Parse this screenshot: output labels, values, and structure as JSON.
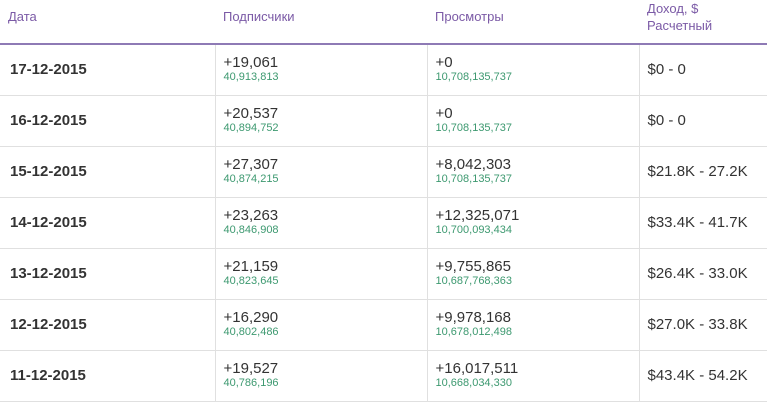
{
  "headers": {
    "date": "Дата",
    "subscribers": "Подписчики",
    "views": "Просмотры",
    "income_line1": "Доход, $",
    "income_line2": "Расчетный"
  },
  "rows": [
    {
      "date": "17-12-2015",
      "subs_delta": "+19,061",
      "subs_total": "40,913,813",
      "views_delta": "+0",
      "views_total": "10,708,135,737",
      "income": "$0 - 0"
    },
    {
      "date": "16-12-2015",
      "subs_delta": "+20,537",
      "subs_total": "40,894,752",
      "views_delta": "+0",
      "views_total": "10,708,135,737",
      "income": "$0 - 0"
    },
    {
      "date": "15-12-2015",
      "subs_delta": "+27,307",
      "subs_total": "40,874,215",
      "views_delta": "+8,042,303",
      "views_total": "10,708,135,737",
      "income": "$21.8K - 27.2K"
    },
    {
      "date": "14-12-2015",
      "subs_delta": "+23,263",
      "subs_total": "40,846,908",
      "views_delta": "+12,325,071",
      "views_total": "10,700,093,434",
      "income": "$33.4K - 41.7K"
    },
    {
      "date": "13-12-2015",
      "subs_delta": "+21,159",
      "subs_total": "40,823,645",
      "views_delta": "+9,755,865",
      "views_total": "10,687,768,363",
      "income": "$26.4K - 33.0K"
    },
    {
      "date": "12-12-2015",
      "subs_delta": "+16,290",
      "subs_total": "40,802,486",
      "views_delta": "+9,978,168",
      "views_total": "10,678,012,498",
      "income": "$27.0K - 33.8K"
    },
    {
      "date": "11-12-2015",
      "subs_delta": "+19,527",
      "subs_total": "40,786,196",
      "views_delta": "+16,017,511",
      "views_total": "10,668,034,330",
      "income": "$43.4K - 54.2K"
    }
  ]
}
